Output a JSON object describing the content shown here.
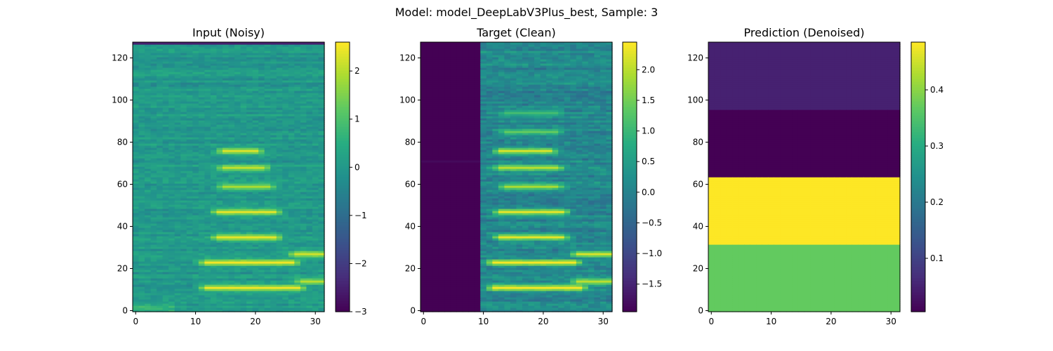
{
  "suptitle": "Model: model_DeepLabV3Plus_best, Sample: 3",
  "chart_data": [
    {
      "type": "heatmap",
      "title": "Input (Noisy)",
      "xlim": [
        -0.5,
        31.5
      ],
      "ylim": [
        -0.5,
        127.5
      ],
      "x_ticks": [
        0,
        10,
        20,
        30
      ],
      "y_ticks": [
        0,
        20,
        40,
        60,
        80,
        100,
        120
      ],
      "colorbar": {
        "vmin": -3.0,
        "vmax": 2.6,
        "ticks": [
          -3,
          -2,
          -1,
          0,
          1,
          2
        ],
        "tick_labels": [
          "−3",
          "−2",
          "−1",
          "0",
          "1",
          "2"
        ]
      },
      "colormap": "viridis",
      "background_level": 0.0,
      "bands": [
        {
          "row": 11,
          "x_start": 12,
          "x_end": 27,
          "value": 2.5
        },
        {
          "row": 14,
          "x_start": 28,
          "x_end": 31,
          "value": 2.0
        },
        {
          "row": 23,
          "x_start": 12,
          "x_end": 26,
          "value": 2.5
        },
        {
          "row": 27,
          "x_start": 27,
          "x_end": 31,
          "value": 2.2
        },
        {
          "row": 35,
          "x_start": 14,
          "x_end": 23,
          "value": 2.4
        },
        {
          "row": 47,
          "x_start": 14,
          "x_end": 23,
          "value": 2.4
        },
        {
          "row": 59,
          "x_start": 15,
          "x_end": 22,
          "value": 1.9
        },
        {
          "row": 68,
          "x_start": 15,
          "x_end": 21,
          "value": 2.1
        },
        {
          "row": 76,
          "x_start": 15,
          "x_end": 20,
          "value": 2.3
        }
      ],
      "notes": {
        "top_row_value": -2.5
      }
    },
    {
      "type": "heatmap",
      "title": "Target (Clean)",
      "xlim": [
        -0.5,
        31.5
      ],
      "ylim": [
        -0.5,
        127.5
      ],
      "x_ticks": [
        0,
        10,
        20,
        30
      ],
      "y_ticks": [
        0,
        20,
        40,
        60,
        80,
        100,
        120
      ],
      "colorbar": {
        "vmin": -1.95,
        "vmax": 2.45,
        "ticks": [
          -1.5,
          -1.0,
          -0.5,
          0.0,
          0.5,
          1.0,
          1.5,
          2.0
        ],
        "tick_labels": [
          "−1.5",
          "−1.0",
          "−0.5",
          "0.0",
          "0.5",
          "1.0",
          "1.5",
          "2.0"
        ]
      },
      "colormap": "viridis",
      "dark_region_columns": [
        0,
        9
      ],
      "dark_value": -1.95,
      "background_level": 0.1,
      "bands": [
        {
          "row": 11,
          "x_start": 12,
          "x_end": 26,
          "value": 2.4
        },
        {
          "row": 14,
          "x_start": 26,
          "x_end": 31,
          "value": 2.0
        },
        {
          "row": 23,
          "x_start": 12,
          "x_end": 25,
          "value": 2.4
        },
        {
          "row": 27,
          "x_start": 26,
          "x_end": 31,
          "value": 2.2
        },
        {
          "row": 35,
          "x_start": 13,
          "x_end": 23,
          "value": 2.3
        },
        {
          "row": 47,
          "x_start": 13,
          "x_end": 23,
          "value": 2.3
        },
        {
          "row": 59,
          "x_start": 14,
          "x_end": 22,
          "value": 1.9
        },
        {
          "row": 68,
          "x_start": 13,
          "x_end": 22,
          "value": 2.0
        },
        {
          "row": 76,
          "x_start": 13,
          "x_end": 21,
          "value": 2.2
        },
        {
          "row": 85,
          "x_start": 14,
          "x_end": 22,
          "value": 1.4
        },
        {
          "row": 94,
          "x_start": 14,
          "x_end": 22,
          "value": 1.1
        }
      ]
    },
    {
      "type": "heatmap",
      "title": "Prediction (Denoised)",
      "xlim": [
        -0.5,
        31.5
      ],
      "ylim": [
        -0.5,
        127.5
      ],
      "x_ticks": [
        0,
        10,
        20,
        30
      ],
      "y_ticks": [
        0,
        20,
        40,
        60,
        80,
        100,
        120
      ],
      "colorbar": {
        "vmin": 0.005,
        "vmax": 0.485,
        "ticks": [
          0.1,
          0.2,
          0.3,
          0.4
        ],
        "tick_labels": [
          "0.1",
          "0.2",
          "0.3",
          "0.4"
        ]
      },
      "colormap": "viridis",
      "blocks": [
        {
          "row_start": 0,
          "row_end": 31,
          "value": 0.37
        },
        {
          "row_start": 32,
          "row_end": 63,
          "value": 0.485
        },
        {
          "row_start": 64,
          "row_end": 95,
          "value": 0.005
        },
        {
          "row_start": 96,
          "row_end": 127,
          "value": 0.05
        }
      ]
    }
  ]
}
